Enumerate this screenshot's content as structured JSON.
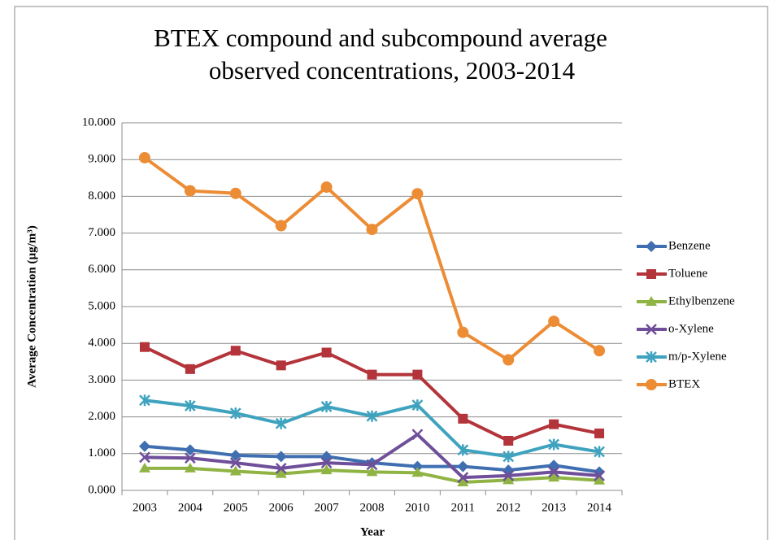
{
  "chart_data": {
    "type": "line",
    "title": [
      "BTEX compound and subcompound average",
      "observed concentrations, 2003-2014"
    ],
    "x_label": "Year",
    "y_label": "Average Concentration  (µg/m³)",
    "categories": [
      "2003",
      "2004",
      "2005",
      "2006",
      "2007",
      "2008",
      "2010",
      "2011",
      "2012",
      "2013",
      "2014"
    ],
    "ylim": [
      0,
      10
    ],
    "yticks": [
      {
        "value": 0,
        "label": "0.000"
      },
      {
        "value": 1,
        "label": "1.000"
      },
      {
        "value": 2,
        "label": "2.000"
      },
      {
        "value": 3,
        "label": "3.000"
      },
      {
        "value": 4,
        "label": "4.000"
      },
      {
        "value": 5,
        "label": "5.000"
      },
      {
        "value": 6,
        "label": "6.000"
      },
      {
        "value": 7,
        "label": "7.000"
      },
      {
        "value": 8,
        "label": "8.000"
      },
      {
        "value": 9,
        "label": "9.000"
      },
      {
        "value": 10,
        "label": "10.000"
      }
    ],
    "grid": true,
    "legend": "right",
    "series": [
      {
        "name": "Benzene",
        "color": "#3f6fb0",
        "marker": "diamond",
        "values": [
          1.2,
          1.1,
          0.95,
          0.92,
          0.92,
          0.75,
          0.65,
          0.65,
          0.55,
          0.68,
          0.5
        ]
      },
      {
        "name": "Toluene",
        "color": "#b3343a",
        "marker": "square",
        "values": [
          3.9,
          3.3,
          3.8,
          3.4,
          3.75,
          3.15,
          3.15,
          1.95,
          1.35,
          1.8,
          1.55
        ]
      },
      {
        "name": "Ethylbenzene",
        "color": "#8fb443",
        "marker": "triangle",
        "values": [
          0.6,
          0.6,
          0.52,
          0.45,
          0.55,
          0.5,
          0.48,
          0.22,
          0.28,
          0.35,
          0.27
        ]
      },
      {
        "name": "o-Xylene",
        "color": "#6f4e9a",
        "marker": "x",
        "values": [
          0.9,
          0.88,
          0.75,
          0.6,
          0.75,
          0.7,
          1.52,
          0.35,
          0.4,
          0.5,
          0.4
        ]
      },
      {
        "name": "m/p-Xylene",
        "color": "#3fa3bf",
        "marker": "star",
        "values": [
          2.45,
          2.3,
          2.1,
          1.82,
          2.28,
          2.02,
          2.32,
          1.1,
          0.92,
          1.25,
          1.05
        ]
      },
      {
        "name": "BTEX",
        "color": "#ec8c35",
        "marker": "circle",
        "values": [
          9.05,
          8.15,
          8.08,
          7.2,
          8.25,
          7.1,
          8.07,
          4.3,
          3.55,
          4.6,
          3.8
        ]
      }
    ]
  }
}
